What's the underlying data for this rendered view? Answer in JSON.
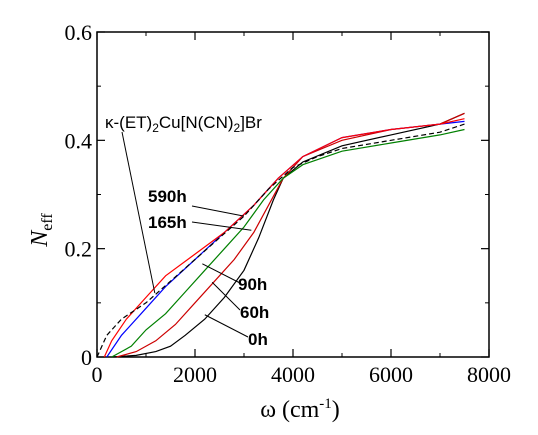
{
  "chart_data": {
    "type": "line",
    "xlabel_symbol": "ω",
    "xlabel_unit": "(cm",
    "xlabel_exp": "-1",
    "xlabel_close": ")",
    "ylabel_symbol": "N",
    "ylabel_sub": "eff",
    "xlim": [
      0,
      8000
    ],
    "ylim": [
      0,
      0.6
    ],
    "x_ticks": [
      0,
      2000,
      4000,
      6000,
      8000
    ],
    "x_tick_labels": [
      "0",
      "2000",
      "4000",
      "6000",
      "8000"
    ],
    "y_ticks": [
      0,
      0.2,
      0.4,
      0.6
    ],
    "y_tick_labels": [
      "0",
      "0.2",
      "0.4",
      "0.6"
    ],
    "compound_label": {
      "pre": "κ-(ET)",
      "sub1": "2",
      "mid": "Cu[N(CN)",
      "sub2": "2",
      "post": "]Br"
    },
    "series": [
      {
        "name": "0h",
        "color": "#000000",
        "dash": "solid",
        "points": [
          [
            300,
            0
          ],
          [
            800,
            0.003
          ],
          [
            1200,
            0.01
          ],
          [
            1500,
            0.02
          ],
          [
            1800,
            0.04
          ],
          [
            2200,
            0.07
          ],
          [
            2600,
            0.11
          ],
          [
            3000,
            0.16
          ],
          [
            3300,
            0.22
          ],
          [
            3600,
            0.29
          ],
          [
            3800,
            0.33
          ],
          [
            4200,
            0.36
          ],
          [
            5000,
            0.39
          ],
          [
            6000,
            0.41
          ],
          [
            7000,
            0.43
          ],
          [
            7500,
            0.45
          ]
        ]
      },
      {
        "name": "60h",
        "color": "#cc0000",
        "dash": "solid",
        "points": [
          [
            400,
            0
          ],
          [
            800,
            0.01
          ],
          [
            1200,
            0.03
          ],
          [
            1600,
            0.06
          ],
          [
            2000,
            0.1
          ],
          [
            2400,
            0.14
          ],
          [
            2800,
            0.18
          ],
          [
            3200,
            0.23
          ],
          [
            3500,
            0.28
          ],
          [
            3800,
            0.33
          ],
          [
            4200,
            0.37
          ],
          [
            5000,
            0.4
          ],
          [
            6000,
            0.42
          ],
          [
            7000,
            0.43
          ],
          [
            7500,
            0.45
          ]
        ]
      },
      {
        "name": "90h",
        "color": "#008000",
        "dash": "solid",
        "points": [
          [
            300,
            0
          ],
          [
            700,
            0.02
          ],
          [
            1000,
            0.05
          ],
          [
            1400,
            0.08
          ],
          [
            1800,
            0.12
          ],
          [
            2200,
            0.16
          ],
          [
            2600,
            0.2
          ],
          [
            3000,
            0.24
          ],
          [
            3400,
            0.29
          ],
          [
            3800,
            0.33
          ],
          [
            4200,
            0.355
          ],
          [
            5000,
            0.38
          ],
          [
            6000,
            0.395
          ],
          [
            7000,
            0.41
          ],
          [
            7500,
            0.42
          ]
        ]
      },
      {
        "name": "165h",
        "color": "#0000ff",
        "dash": "solid",
        "points": [
          [
            200,
            0
          ],
          [
            500,
            0.04
          ],
          [
            900,
            0.08
          ],
          [
            1400,
            0.13
          ],
          [
            2000,
            0.18
          ],
          [
            2600,
            0.23
          ],
          [
            3200,
            0.28
          ],
          [
            3700,
            0.33
          ],
          [
            4200,
            0.37
          ],
          [
            5000,
            0.405
          ],
          [
            6000,
            0.42
          ],
          [
            7000,
            0.43
          ],
          [
            7500,
            0.435
          ]
        ]
      },
      {
        "name": "590h",
        "color": "#ff0000",
        "dash": "solid",
        "points": [
          [
            150,
            0
          ],
          [
            300,
            0.03
          ],
          [
            600,
            0.07
          ],
          [
            1000,
            0.11
          ],
          [
            1400,
            0.15
          ],
          [
            2000,
            0.19
          ],
          [
            2600,
            0.23
          ],
          [
            3200,
            0.28
          ],
          [
            3700,
            0.33
          ],
          [
            4200,
            0.37
          ],
          [
            5000,
            0.405
          ],
          [
            6000,
            0.42
          ],
          [
            7000,
            0.43
          ],
          [
            7500,
            0.44
          ]
        ]
      },
      {
        "name": "",
        "color": "#000000",
        "dash": "dashed",
        "points": [
          [
            0,
            0
          ],
          [
            200,
            0.04
          ],
          [
            500,
            0.07
          ],
          [
            1000,
            0.1
          ],
          [
            1500,
            0.14
          ],
          [
            2000,
            0.18
          ],
          [
            2500,
            0.22
          ],
          [
            3000,
            0.26
          ],
          [
            3500,
            0.31
          ],
          [
            4000,
            0.35
          ],
          [
            4500,
            0.37
          ],
          [
            5000,
            0.385
          ],
          [
            6000,
            0.4
          ],
          [
            7000,
            0.415
          ],
          [
            7500,
            0.43
          ]
        ]
      }
    ],
    "annotations": [
      {
        "text": "590h",
        "pointer": [
          3000,
          0.26
        ]
      },
      {
        "text": "165h",
        "pointer": [
          3150,
          0.234
        ]
      },
      {
        "text": "90h",
        "pointer": [
          2150,
          0.172
        ]
      },
      {
        "text": "60h",
        "pointer": [
          2350,
          0.138
        ]
      },
      {
        "text": "0h",
        "pointer": [
          2200,
          0.078
        ]
      }
    ],
    "compound_pointer": [
      1180,
      0.118
    ]
  }
}
